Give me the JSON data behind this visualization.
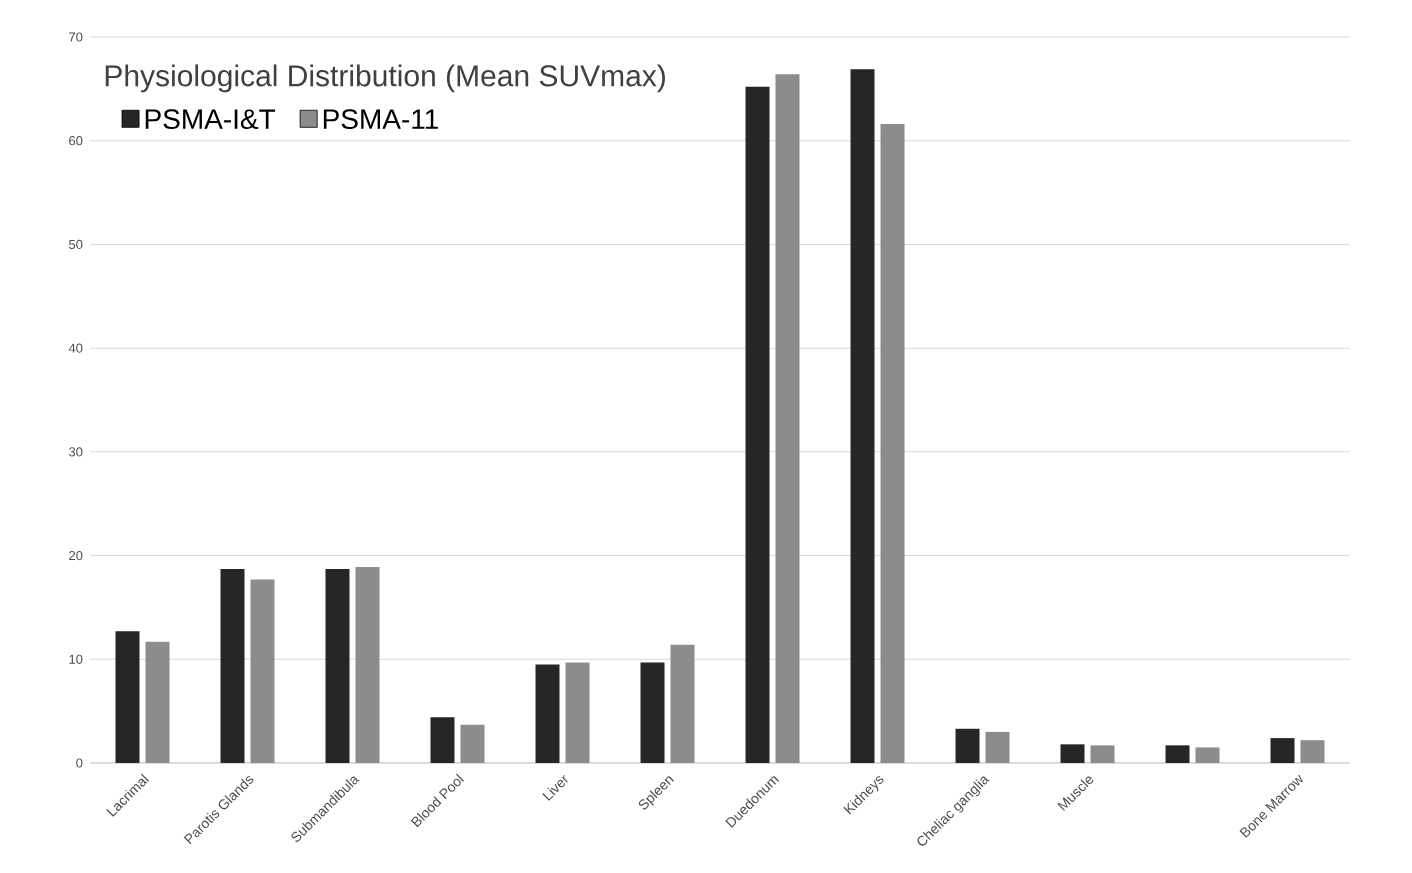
{
  "chart_data": {
    "type": "bar",
    "title": "Physiological Distribution (Mean SUVmax)",
    "categories": [
      "Lacrimal",
      "Parotis Glands",
      "Submandibula",
      "Blood Pool",
      "Liver",
      "Spleen",
      "Duedonum",
      "Kidneys",
      "Cheliac ganglia",
      "Muscle",
      null,
      "Bone Marrow"
    ],
    "series": [
      {
        "name": "PSMA-I&T",
        "color": "#262626",
        "values": [
          12.7,
          18.7,
          18.7,
          4.4,
          9.5,
          9.7,
          65.2,
          66.9,
          3.3,
          1.8,
          1.7,
          2.4
        ]
      },
      {
        "name": "PSMA-11",
        "color": "#8c8c8c",
        "values": [
          11.7,
          17.7,
          18.9,
          3.7,
          9.7,
          11.4,
          66.4,
          61.6,
          3.0,
          1.7,
          1.5,
          2.2
        ]
      }
    ],
    "ylim": [
      0,
      70
    ],
    "yticks": [
      0,
      10,
      20,
      30,
      40,
      50,
      60,
      70
    ],
    "grid": "y",
    "legend": "top left"
  }
}
